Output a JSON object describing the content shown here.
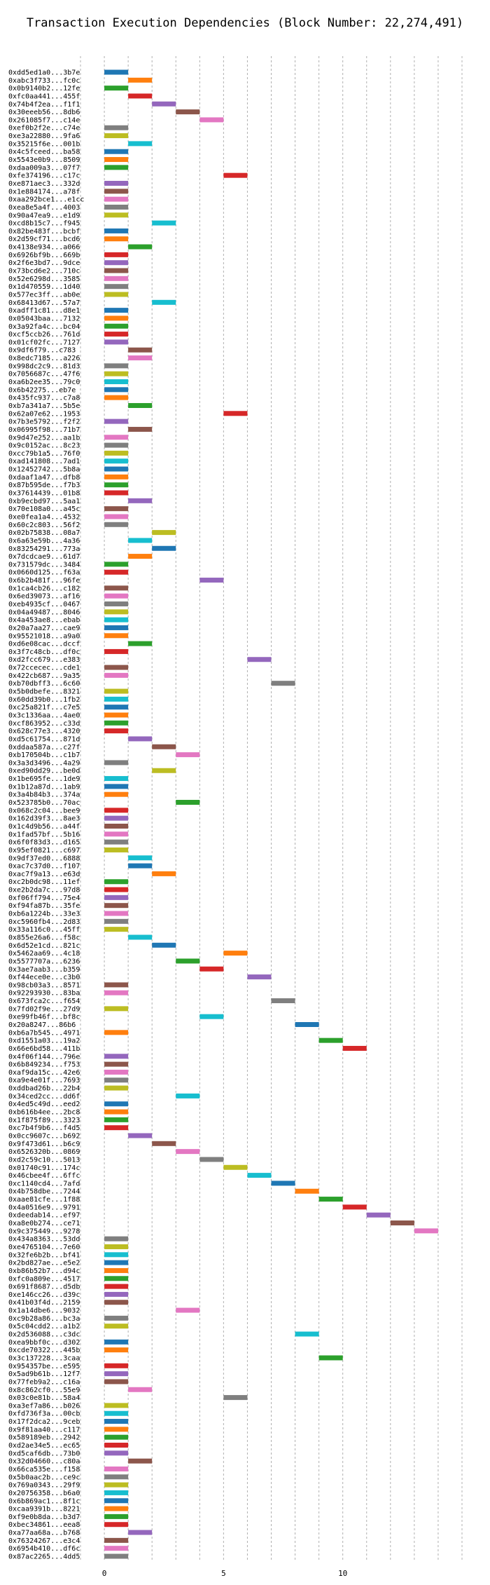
{
  "chart_data": {
    "type": "gantt",
    "title": "Transaction Execution Dependencies (Block Number: 22,274,491)",
    "xlabel": "",
    "ylabel": "",
    "xlim": [
      -1,
      15
    ],
    "xticks": [
      0,
      5,
      10
    ],
    "grid": true,
    "bar_width": 1,
    "colors": {
      "blue": "#1f77b4",
      "orange": "#ff7f0e",
      "green": "#2ca02c",
      "red": "#d62728",
      "purple": "#9467bd",
      "brown": "#8c564b",
      "pink": "#e377c2",
      "gray": "#7f7f7f",
      "olive": "#bcbd22",
      "cyan": "#17becf"
    },
    "transactions": [
      {
        "label": "0xdd5ed1a0...3b7e",
        "start": 0,
        "color": "blue"
      },
      {
        "label": "0xabc3f733...fc0c",
        "start": 1,
        "color": "orange"
      },
      {
        "label": "0x0b9140b2...12fe",
        "start": 0,
        "color": "green"
      },
      {
        "label": "0xfc0aa441...455f",
        "start": 1,
        "color": "red"
      },
      {
        "label": "0x74b4f2ea...f1f1",
        "start": 2,
        "color": "purple"
      },
      {
        "label": "0x30eeeb56...8db6",
        "start": 3,
        "color": "brown"
      },
      {
        "label": "0x261085f7...c14e",
        "start": 4,
        "color": "pink"
      },
      {
        "label": "0xef0b2f2e...c74e",
        "start": 0,
        "color": "gray"
      },
      {
        "label": "0xe3a22880...9fa6",
        "start": 0,
        "color": "olive"
      },
      {
        "label": "0x35215f6e...001b",
        "start": 1,
        "color": "cyan"
      },
      {
        "label": "0x4c5fceed...ba58",
        "start": 0,
        "color": "blue"
      },
      {
        "label": "0x5543e0b9...8509",
        "start": 0,
        "color": "orange"
      },
      {
        "label": "0xdaa009a3...07f7",
        "start": 0,
        "color": "green"
      },
      {
        "label": "0xfe374196...c17c",
        "start": 5,
        "color": "red"
      },
      {
        "label": "0xe871aec3...332d",
        "start": 0,
        "color": "purple"
      },
      {
        "label": "0x1e884174...a78f",
        "start": 0,
        "color": "brown"
      },
      {
        "label": "0xaa292bce1...e1cc",
        "start": 0,
        "color": "pink"
      },
      {
        "label": "0xea8e5a4f...4003",
        "start": 0,
        "color": "gray"
      },
      {
        "label": "0x90a47ea9...e1d9",
        "start": 0,
        "color": "olive"
      },
      {
        "label": "0xcd8b15c7...f945",
        "start": 2,
        "color": "cyan"
      },
      {
        "label": "0x82be483f...bcbf",
        "start": 0,
        "color": "blue"
      },
      {
        "label": "0x2d59cf71...bcd6",
        "start": 0,
        "color": "orange"
      },
      {
        "label": "0x4138e934...a066",
        "start": 1,
        "color": "green"
      },
      {
        "label": "0x6926bf9b...669b",
        "start": 0,
        "color": "red"
      },
      {
        "label": "0x2f6e3bd7...9dce",
        "start": 0,
        "color": "purple"
      },
      {
        "label": "0x73bcd6e2...710c",
        "start": 0,
        "color": "brown"
      },
      {
        "label": "0x52e6298d...3585",
        "start": 0,
        "color": "pink"
      },
      {
        "label": "0x1d470559...1d40",
        "start": 0,
        "color": "gray"
      },
      {
        "label": "0x577ec3ff...ab0e",
        "start": 0,
        "color": "olive"
      },
      {
        "label": "0x68413d67...57a7",
        "start": 2,
        "color": "cyan"
      },
      {
        "label": "0xadff1c81...d8e1",
        "start": 0,
        "color": "blue"
      },
      {
        "label": "0x05043baa...7132",
        "start": 0,
        "color": "orange"
      },
      {
        "label": "0x3a92fa4c...bc04",
        "start": 0,
        "color": "green"
      },
      {
        "label": "0xcf5ccb26...761d",
        "start": 0,
        "color": "red"
      },
      {
        "label": "0x01cf02fc...7127",
        "start": 0,
        "color": "purple"
      },
      {
        "label": "0x9df6f79...c783",
        "start": 1,
        "color": "brown"
      },
      {
        "label": "0x8edc7185...a226",
        "start": 1,
        "color": "pink"
      },
      {
        "label": "0x998dc2c9...81d3",
        "start": 0,
        "color": "gray"
      },
      {
        "label": "0x7056687c...47f6",
        "start": 0,
        "color": "olive"
      },
      {
        "label": "0xa6b2ee35...79c0",
        "start": 0,
        "color": "cyan"
      },
      {
        "label": "0x6b42275...eb7e",
        "start": 0,
        "color": "blue"
      },
      {
        "label": "0x435fc937...c7a8",
        "start": 0,
        "color": "orange"
      },
      {
        "label": "0xb7a341a7...5b5e",
        "start": 1,
        "color": "green"
      },
      {
        "label": "0x62a07e62...1953",
        "start": 5,
        "color": "red"
      },
      {
        "label": "0x7b3e5792...f2f2",
        "start": 0,
        "color": "purple"
      },
      {
        "label": "0x06995f98...71b7",
        "start": 1,
        "color": "brown"
      },
      {
        "label": "0x9d47e252...aa1b",
        "start": 0,
        "color": "pink"
      },
      {
        "label": "0x9c0152ac...8c23",
        "start": 0,
        "color": "gray"
      },
      {
        "label": "0xcc79b1a5...76f0",
        "start": 0,
        "color": "olive"
      },
      {
        "label": "0xad141808...7ad1",
        "start": 0,
        "color": "cyan"
      },
      {
        "label": "0x12452742...5b8a",
        "start": 0,
        "color": "blue"
      },
      {
        "label": "0xdaaf1a47...dfb8",
        "start": 0,
        "color": "orange"
      },
      {
        "label": "0x87b595de...f7b3",
        "start": 0,
        "color": "green"
      },
      {
        "label": "0x37614439...01b8",
        "start": 0,
        "color": "red"
      },
      {
        "label": "0xb9ecbd97...5aa1",
        "start": 1,
        "color": "purple"
      },
      {
        "label": "0x70e108a0...a45c",
        "start": 0,
        "color": "brown"
      },
      {
        "label": "0xe0fea1a4...4532",
        "start": 0,
        "color": "pink"
      },
      {
        "label": "0x60c2c803...56f2",
        "start": 0,
        "color": "gray"
      },
      {
        "label": "0x02b75838...08a7",
        "start": 2,
        "color": "olive"
      },
      {
        "label": "0x6a63e59b...4a36",
        "start": 1,
        "color": "cyan"
      },
      {
        "label": "0x83254291...773a",
        "start": 2,
        "color": "blue"
      },
      {
        "label": "0x7dcdcae9...61d7",
        "start": 1,
        "color": "orange"
      },
      {
        "label": "0x731579dc...3484",
        "start": 0,
        "color": "green"
      },
      {
        "label": "0x0660d125...f63a",
        "start": 0,
        "color": "red"
      },
      {
        "label": "0x6b2b481f...96fe",
        "start": 4,
        "color": "purple"
      },
      {
        "label": "0x1ca4cb26...c182",
        "start": 0,
        "color": "brown"
      },
      {
        "label": "0x6ed39073...af16",
        "start": 0,
        "color": "pink"
      },
      {
        "label": "0xeb4935cf...0467",
        "start": 0,
        "color": "gray"
      },
      {
        "label": "0x04a49487...8046",
        "start": 0,
        "color": "olive"
      },
      {
        "label": "0x4a453ae8...ebab",
        "start": 0,
        "color": "cyan"
      },
      {
        "label": "0x20a7aa27...cae9",
        "start": 0,
        "color": "blue"
      },
      {
        "label": "0x95521018...a9a0",
        "start": 0,
        "color": "orange"
      },
      {
        "label": "0xd6e08cac...dccf",
        "start": 1,
        "color": "green"
      },
      {
        "label": "0x3f7c48cb...df0c",
        "start": 0,
        "color": "red"
      },
      {
        "label": "0xd2fcc679...e383",
        "start": 6,
        "color": "purple"
      },
      {
        "label": "0x72ccecec...cde1",
        "start": 0,
        "color": "brown"
      },
      {
        "label": "0x422cb687...9a35",
        "start": 0,
        "color": "pink"
      },
      {
        "label": "0xb70dbff3...6c60",
        "start": 7,
        "color": "gray"
      },
      {
        "label": "0x5b0dbefe...8321",
        "start": 0,
        "color": "olive"
      },
      {
        "label": "0x60dd39b0...1fb2",
        "start": 0,
        "color": "cyan"
      },
      {
        "label": "0xc25a821f...c7e5",
        "start": 0,
        "color": "blue"
      },
      {
        "label": "0x3c1336aa...4ae0",
        "start": 0,
        "color": "orange"
      },
      {
        "label": "0xcf863952...c33d",
        "start": 0,
        "color": "green"
      },
      {
        "label": "0x628c77e3...4320",
        "start": 0,
        "color": "red"
      },
      {
        "label": "0xd5c61754...871d",
        "start": 1,
        "color": "purple"
      },
      {
        "label": "0xddaa587a...c27f",
        "start": 2,
        "color": "brown"
      },
      {
        "label": "0xb170504b...c1b7",
        "start": 3,
        "color": "pink"
      },
      {
        "label": "0x3a3d3496...4a29",
        "start": 0,
        "color": "gray"
      },
      {
        "label": "0xed90dd29...be0d",
        "start": 2,
        "color": "olive"
      },
      {
        "label": "0x1be695fe...1de9",
        "start": 0,
        "color": "cyan"
      },
      {
        "label": "0x1b12a87d...1ab9",
        "start": 0,
        "color": "blue"
      },
      {
        "label": "0x3a4b84b3...374a",
        "start": 0,
        "color": "orange"
      },
      {
        "label": "0x523785b0...70ac",
        "start": 3,
        "color": "green"
      },
      {
        "label": "0x068c2c04...bee9",
        "start": 0,
        "color": "red"
      },
      {
        "label": "0x162d39f3...8ae3",
        "start": 0,
        "color": "purple"
      },
      {
        "label": "0x1c4d9b56...a44f",
        "start": 0,
        "color": "brown"
      },
      {
        "label": "0x1fad57bf...5b16",
        "start": 0,
        "color": "pink"
      },
      {
        "label": "0x6f0f83d3...d165",
        "start": 0,
        "color": "gray"
      },
      {
        "label": "0x95ef0821...c697",
        "start": 0,
        "color": "olive"
      },
      {
        "label": "0x9df37ed0...6888",
        "start": 1,
        "color": "cyan"
      },
      {
        "label": "0xac7c37d0...f107",
        "start": 1,
        "color": "blue"
      },
      {
        "label": "0xac7f9a13...e63d",
        "start": 2,
        "color": "orange"
      },
      {
        "label": "0xc2b0dc98...11ef",
        "start": 0,
        "color": "green"
      },
      {
        "label": "0xe2b2da7c...97d8",
        "start": 0,
        "color": "red"
      },
      {
        "label": "0xf06ff794...75e4",
        "start": 0,
        "color": "purple"
      },
      {
        "label": "0xf94fa87b...35fe",
        "start": 0,
        "color": "brown"
      },
      {
        "label": "0xb6a1224b...33e3",
        "start": 0,
        "color": "pink"
      },
      {
        "label": "0xc5960fb4...2d83",
        "start": 0,
        "color": "gray"
      },
      {
        "label": "0x33a116c0...45ff",
        "start": 0,
        "color": "olive"
      },
      {
        "label": "0x855e26a6...f58c",
        "start": 1,
        "color": "cyan"
      },
      {
        "label": "0x6d52e1cd...821c",
        "start": 2,
        "color": "blue"
      },
      {
        "label": "0x5462aa69...4c18",
        "start": 5,
        "color": "orange"
      },
      {
        "label": "0x5577707a...6236",
        "start": 3,
        "color": "green"
      },
      {
        "label": "0x3ae7aab3...b359",
        "start": 4,
        "color": "red"
      },
      {
        "label": "0xf44ece0e...c3b0",
        "start": 6,
        "color": "purple"
      },
      {
        "label": "0x98cb03a3...8571",
        "start": 0,
        "color": "brown"
      },
      {
        "label": "0x92293930...83ba",
        "start": 0,
        "color": "pink"
      },
      {
        "label": "0x673fca2c...f654",
        "start": 7,
        "color": "gray"
      },
      {
        "label": "0x7fd02f9e...27d9",
        "start": 0,
        "color": "olive"
      },
      {
        "label": "0xe99fb46f...bf8c",
        "start": 4,
        "color": "cyan"
      },
      {
        "label": "0x20a8247...86b6",
        "start": 8,
        "color": "blue"
      },
      {
        "label": "0xb6a7b545...4971",
        "start": 0,
        "color": "orange"
      },
      {
        "label": "0xd1551a03...19a2",
        "start": 9,
        "color": "green"
      },
      {
        "label": "0x66e6bd58...411b",
        "start": 10,
        "color": "red"
      },
      {
        "label": "0x4f06f144...796e",
        "start": 0,
        "color": "purple"
      },
      {
        "label": "0x6b849234...f753",
        "start": 0,
        "color": "brown"
      },
      {
        "label": "0xaf9da15c...42e6",
        "start": 0,
        "color": "pink"
      },
      {
        "label": "0xa9e4e01f...7693",
        "start": 0,
        "color": "gray"
      },
      {
        "label": "0xddbad26b...22b4",
        "start": 0,
        "color": "olive"
      },
      {
        "label": "0x34ced2cc...dd6f",
        "start": 3,
        "color": "cyan"
      },
      {
        "label": "0x4ed5c49d...eed2",
        "start": 0,
        "color": "blue"
      },
      {
        "label": "0xb616b4ee...2bc8",
        "start": 0,
        "color": "orange"
      },
      {
        "label": "0x1f875f89...3323",
        "start": 0,
        "color": "green"
      },
      {
        "label": "0xc7b4f9b6...f4d5",
        "start": 0,
        "color": "red"
      },
      {
        "label": "0x0cc9607c...b692",
        "start": 1,
        "color": "purple"
      },
      {
        "label": "0x9f473d61...b6c9",
        "start": 2,
        "color": "brown"
      },
      {
        "label": "0x6526320b...0869",
        "start": 3,
        "color": "pink"
      },
      {
        "label": "0xd2c59c10...5013",
        "start": 4,
        "color": "gray"
      },
      {
        "label": "0x01740c91...174c",
        "start": 5,
        "color": "olive"
      },
      {
        "label": "0x46cbee4f...6ffc",
        "start": 6,
        "color": "cyan"
      },
      {
        "label": "0xc1140cd4...7afd",
        "start": 7,
        "color": "blue"
      },
      {
        "label": "0x4b758dbe...7244",
        "start": 8,
        "color": "orange"
      },
      {
        "label": "0xaae81cfe...1f88",
        "start": 9,
        "color": "green"
      },
      {
        "label": "0x4a0516e9...9791",
        "start": 10,
        "color": "red"
      },
      {
        "label": "0xdeedab14...ef97",
        "start": 11,
        "color": "purple"
      },
      {
        "label": "0xa8e0b274...ce71",
        "start": 12,
        "color": "brown"
      },
      {
        "label": "0x9c375449...9278",
        "start": 13,
        "color": "pink"
      },
      {
        "label": "0x434a8363...53dd",
        "start": 0,
        "color": "gray"
      },
      {
        "label": "0xe4765104...7e60",
        "start": 0,
        "color": "olive"
      },
      {
        "label": "0x32fe6b2b...bf41",
        "start": 0,
        "color": "cyan"
      },
      {
        "label": "0x2bd827ae...e5e2",
        "start": 0,
        "color": "blue"
      },
      {
        "label": "0xb86b52b7...d94c",
        "start": 0,
        "color": "orange"
      },
      {
        "label": "0xfc0a809e...4517",
        "start": 0,
        "color": "green"
      },
      {
        "label": "0x691f8687...d5db",
        "start": 0,
        "color": "red"
      },
      {
        "label": "0xe146cc26...d39c",
        "start": 0,
        "color": "purple"
      },
      {
        "label": "0x41b03f4d...2159",
        "start": 0,
        "color": "brown"
      },
      {
        "label": "0x1a14dbe6...9032",
        "start": 3,
        "color": "pink"
      },
      {
        "label": "0xc9b28a86...bc3a",
        "start": 0,
        "color": "gray"
      },
      {
        "label": "0x5c04cdd2...a1b2",
        "start": 0,
        "color": "olive"
      },
      {
        "label": "0x2d536088...c3dc",
        "start": 8,
        "color": "cyan"
      },
      {
        "label": "0xea9bbf0c...d302",
        "start": 0,
        "color": "blue"
      },
      {
        "label": "0xcde70322...445b",
        "start": 0,
        "color": "orange"
      },
      {
        "label": "0x3c137228...3caa",
        "start": 9,
        "color": "green"
      },
      {
        "label": "0x954357be...e595",
        "start": 0,
        "color": "red"
      },
      {
        "label": "0x5ad9b61b...12f7",
        "start": 0,
        "color": "purple"
      },
      {
        "label": "0x77feb9a2...c16a",
        "start": 0,
        "color": "brown"
      },
      {
        "label": "0x8c862cf0...55e9",
        "start": 1,
        "color": "pink"
      },
      {
        "label": "0x03c0e81b...58a4",
        "start": 5,
        "color": "gray"
      },
      {
        "label": "0xa3ef7a86...b026",
        "start": 0,
        "color": "olive"
      },
      {
        "label": "0xfd736f3a...00cb",
        "start": 0,
        "color": "cyan"
      },
      {
        "label": "0x17f2dca2...9ceb",
        "start": 0,
        "color": "blue"
      },
      {
        "label": "0x9f81aa40...c117",
        "start": 0,
        "color": "orange"
      },
      {
        "label": "0x589189eb...2942",
        "start": 0,
        "color": "green"
      },
      {
        "label": "0xd2ae34e5...ec65",
        "start": 0,
        "color": "red"
      },
      {
        "label": "0xd5caf6db...73b0",
        "start": 0,
        "color": "purple"
      },
      {
        "label": "0x32d04660...c80a",
        "start": 1,
        "color": "brown"
      },
      {
        "label": "0x66ca535e...f158",
        "start": 0,
        "color": "pink"
      },
      {
        "label": "0x5b0aac2b...ce9c",
        "start": 0,
        "color": "gray"
      },
      {
        "label": "0x769a0343...29f9",
        "start": 0,
        "color": "olive"
      },
      {
        "label": "0x20756358...b6a0",
        "start": 0,
        "color": "cyan"
      },
      {
        "label": "0x6b869ac1...8f1c",
        "start": 0,
        "color": "blue"
      },
      {
        "label": "0xcaa9391b...8221",
        "start": 0,
        "color": "orange"
      },
      {
        "label": "0xf9e0b8da...b3d7",
        "start": 0,
        "color": "green"
      },
      {
        "label": "0xbec34861...eea8",
        "start": 0,
        "color": "red"
      },
      {
        "label": "0xa77aa68a...b768",
        "start": 1,
        "color": "purple"
      },
      {
        "label": "0x76324267...e3c4",
        "start": 0,
        "color": "brown"
      },
      {
        "label": "0x6954b410...df6c",
        "start": 0,
        "color": "pink"
      },
      {
        "label": "0x87ac2265...4dd5",
        "start": 0,
        "color": "gray"
      }
    ]
  }
}
